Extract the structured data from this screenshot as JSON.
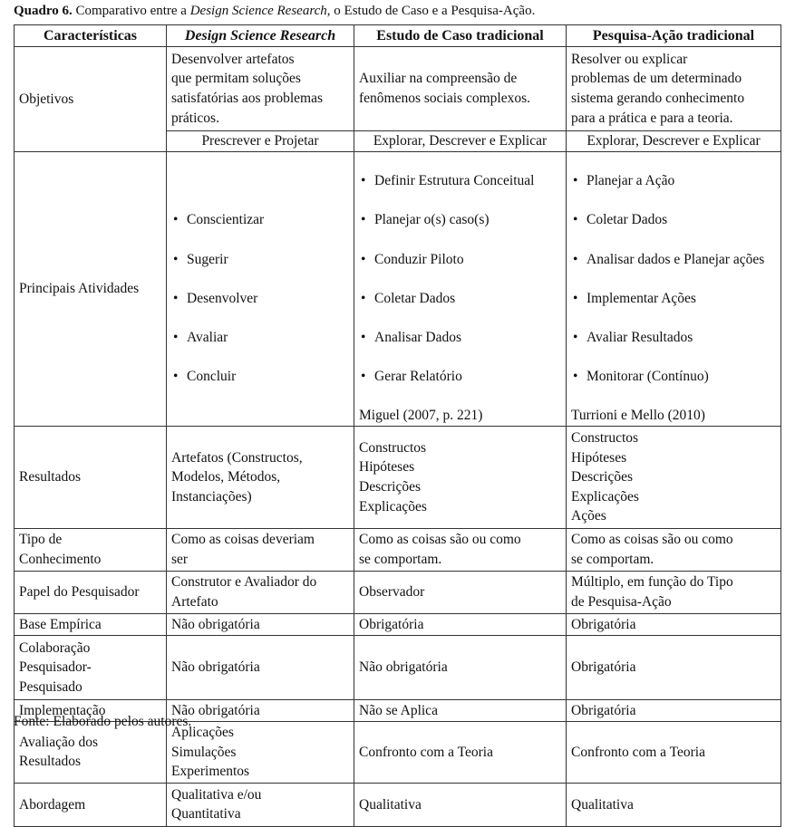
{
  "caption": {
    "label": "Quadro 6.",
    "text_before": " Comparativo entre a ",
    "italic": "Design Science Research",
    "text_after": ", o Estudo de Caso e a Pesquisa-Ação."
  },
  "headers": [
    "Características",
    "Design Science Research",
    "Estudo de Caso tradicional",
    "Pesquisa-Ação tradicional"
  ],
  "objetivos": {
    "label": "Objetivos",
    "cells": [
      "Desenvolver artefatos\nque permitam soluções\nsatisfatórias aos problemas\npráticos.",
      "Auxiliar na compreensão de\nfenômenos sociais complexos.",
      "Resolver ou explicar\nproblemas de um determinado\nsistema gerando conhecimento\npara a prática e para a teoria."
    ],
    "sub": [
      "Prescrever e Projetar",
      "Explorar, Descrever e Explicar",
      "Explorar, Descrever e Explicar"
    ]
  },
  "atividades": {
    "label": "Principais Atividades",
    "dsr": [
      "Conscientizar",
      "Sugerir",
      "Desenvolver",
      "Avaliar",
      "Concluir"
    ],
    "caso": [
      "Definir Estrutura Conceitual",
      "Planejar o(s) caso(s)",
      "Conduzir Piloto",
      "Coletar Dados",
      "Analisar Dados",
      "Gerar Relatório"
    ],
    "caso_ref": "Miguel (2007, p. 221)",
    "pa": [
      "Planejar a Ação",
      "Coletar Dados",
      "Analisar dados e Planejar ações",
      "Implementar Ações",
      "Avaliar Resultados",
      "Monitorar (Contínuo)"
    ],
    "pa_ref": "Turrioni e Mello (2010)"
  },
  "rows": [
    {
      "label": "Resultados",
      "cells": [
        "Artefatos (Constructos,\nModelos, Métodos,\nInstanciações)",
        "Constructos\nHipóteses\nDescrições\nExplicações",
        "Constructos\nHipóteses\nDescrições\nExplicações\nAções"
      ]
    },
    {
      "label": "Tipo de\nConhecimento",
      "cells": [
        "Como as coisas deveriam\nser",
        "Como as coisas são ou como\nse comportam.",
        "Como as coisas são ou como\nse comportam."
      ]
    },
    {
      "label": "Papel do Pesquisador",
      "cells": [
        "Construtor e Avaliador do\nArtefato",
        "Observador",
        "Múltiplo, em função do Tipo\nde Pesquisa-Ação"
      ]
    },
    {
      "label": "Base Empírica",
      "cells": [
        "Não obrigatória",
        "Obrigatória",
        "Obrigatória"
      ]
    },
    {
      "label": "Colaboração\nPesquisador-\nPesquisado",
      "cells": [
        "Não obrigatória",
        "Não obrigatória",
        "Obrigatória"
      ]
    },
    {
      "label": "Implementação",
      "cells": [
        "Não obrigatória",
        "Não se Aplica",
        "Obrigatória"
      ]
    },
    {
      "label": "Avaliação dos\nResultados",
      "cells": [
        "Aplicações\nSimulações\nExperimentos",
        "Confronto com a Teoria",
        "Confronto com a Teoria"
      ]
    },
    {
      "label": "Abordagem",
      "cells": [
        "Qualitativa e/ou\nQuantitativa",
        "Qualitativa",
        "Qualitativa"
      ]
    }
  ],
  "footer": "Fonte: Elaborado pelos autores."
}
